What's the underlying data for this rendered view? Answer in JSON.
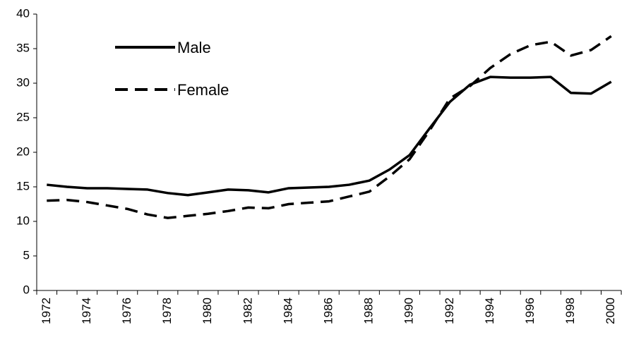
{
  "chart_data": {
    "type": "line",
    "categories": [
      "1972",
      null,
      "1974",
      null,
      "1976",
      null,
      "1978",
      null,
      "1980",
      null,
      "1982",
      null,
      "1984",
      null,
      "1986",
      null,
      "1988",
      null,
      "1990",
      null,
      "1992",
      null,
      "1994",
      null,
      "1996",
      null,
      "1998",
      null,
      "2000"
    ],
    "series": [
      {
        "name": "Male",
        "color": "#000000",
        "dash": "solid",
        "values": [
          15.3,
          15.0,
          14.8,
          14.8,
          14.7,
          14.6,
          14.1,
          13.8,
          14.2,
          14.6,
          14.5,
          14.2,
          14.8,
          14.9,
          15.0,
          15.3,
          15.9,
          17.5,
          19.6,
          23.5,
          27.3,
          29.8,
          30.9,
          30.8,
          30.8,
          30.9,
          28.6,
          28.5,
          30.2
        ]
      },
      {
        "name": "Female",
        "color": "#000000",
        "dash": "dashed",
        "values": [
          13.0,
          13.1,
          12.8,
          12.3,
          11.8,
          11.0,
          10.5,
          10.8,
          11.1,
          11.5,
          12.0,
          11.9,
          12.5,
          12.7,
          12.9,
          13.6,
          14.3,
          16.5,
          19.0,
          23.2,
          27.8,
          29.6,
          32.2,
          34.2,
          35.5,
          36.0,
          34.0,
          34.8,
          36.8
        ]
      }
    ],
    "ylim": [
      0,
      40
    ],
    "yticks": [
      0,
      5,
      10,
      15,
      20,
      25,
      30,
      35,
      40
    ],
    "grid": false,
    "legend": "upper-left"
  }
}
